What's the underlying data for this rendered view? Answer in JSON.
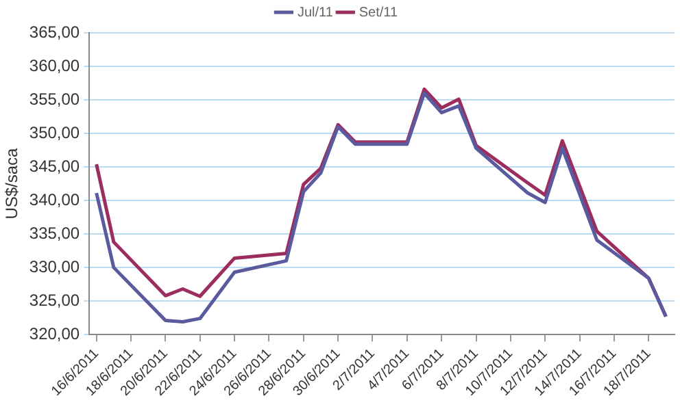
{
  "chart_data": {
    "type": "line",
    "ylabel": "US$/saca",
    "x": [
      "2011-06-16",
      "2011-06-17",
      "2011-06-20",
      "2011-06-21",
      "2011-06-22",
      "2011-06-24",
      "2011-06-27",
      "2011-06-28",
      "2011-06-29",
      "2011-06-30",
      "2011-07-01",
      "2011-07-04",
      "2011-07-05",
      "2011-07-06",
      "2011-07-07",
      "2011-07-08",
      "2011-07-11",
      "2011-07-12",
      "2011-07-13",
      "2011-07-15",
      "2011-07-18",
      "2011-07-19"
    ],
    "series": [
      {
        "name": "Jul/11",
        "color": "#5a5a9e",
        "values": [
          341.1,
          330.0,
          322.1,
          321.9,
          322.4,
          329.3,
          331.0,
          341.3,
          344.1,
          351.0,
          348.4,
          348.4,
          356.0,
          353.1,
          354.1,
          347.8,
          341.1,
          339.7,
          347.8,
          334.1,
          328.4,
          322.7
        ]
      },
      {
        "name": "Set/11",
        "color": "#9b2d5f",
        "values": [
          345.4,
          333.8,
          325.8,
          326.8,
          325.7,
          331.4,
          332.1,
          342.4,
          344.8,
          351.3,
          348.7,
          348.7,
          356.6,
          353.8,
          355.1,
          348.2,
          342.6,
          340.8,
          348.9,
          335.4,
          328.4,
          322.7
        ]
      }
    ],
    "xlim": [
      "2011-06-15T14:00",
      "2011-07-19T12:00"
    ],
    "xticks": [
      {
        "value": "2011-06-16",
        "label": "16/6/2011"
      },
      {
        "value": "2011-06-18",
        "label": "18/6/2011"
      },
      {
        "value": "2011-06-20",
        "label": "20/6/2011"
      },
      {
        "value": "2011-06-22",
        "label": "22/6/2011"
      },
      {
        "value": "2011-06-24",
        "label": "24/6/2011"
      },
      {
        "value": "2011-06-26",
        "label": "26/6/2011"
      },
      {
        "value": "2011-06-28",
        "label": "28/6/2011"
      },
      {
        "value": "2011-06-30",
        "label": "30/6/2011"
      },
      {
        "value": "2011-07-02",
        "label": "2/7/2011"
      },
      {
        "value": "2011-07-04",
        "label": "4/7/2011"
      },
      {
        "value": "2011-07-06",
        "label": "6/7/2011"
      },
      {
        "value": "2011-07-08",
        "label": "8/7/2011"
      },
      {
        "value": "2011-07-10",
        "label": "10/7/2011"
      },
      {
        "value": "2011-07-12",
        "label": "12/7/2011"
      },
      {
        "value": "2011-07-14",
        "label": "14/7/2011"
      },
      {
        "value": "2011-07-16",
        "label": "16/7/2011"
      },
      {
        "value": "2011-07-18",
        "label": "18/7/2011"
      }
    ],
    "ylim": [
      320,
      365
    ],
    "yticks": [
      {
        "value": 320,
        "label": "320,00"
      },
      {
        "value": 325,
        "label": "325,00"
      },
      {
        "value": 330,
        "label": "330,00"
      },
      {
        "value": 335,
        "label": "335,00"
      },
      {
        "value": 340,
        "label": "340,00"
      },
      {
        "value": 345,
        "label": "345,00"
      },
      {
        "value": 350,
        "label": "350,00"
      },
      {
        "value": 355,
        "label": "355,00"
      },
      {
        "value": 360,
        "label": "360,00"
      },
      {
        "value": 365,
        "label": "365,00"
      }
    ],
    "grid": "y",
    "legend": "top",
    "marker": "none",
    "line_style": "solid"
  }
}
